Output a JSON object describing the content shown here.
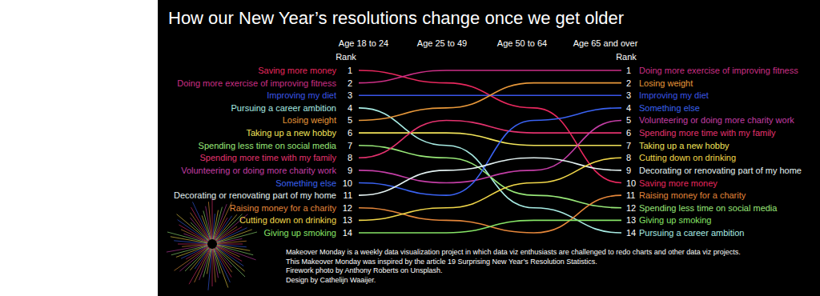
{
  "chart_data": {
    "type": "bump",
    "title": "How our New Year’s resolutions change once we get older",
    "categories": [
      "Age 18 to 24",
      "Age 25 to 49",
      "Age 50 to 64",
      "Age 65 and over"
    ],
    "y_label": "Rank",
    "ylim": [
      1,
      14
    ],
    "yticks": [
      1,
      2,
      3,
      4,
      5,
      6,
      7,
      8,
      9,
      10,
      11,
      12,
      13,
      14
    ],
    "series": [
      {
        "name": "Saving more money",
        "color": "#e8285e",
        "values": [
          1,
          2,
          4,
          10
        ]
      },
      {
        "name": "Doing more exercise of improving fitness",
        "color": "#cc2f86",
        "values": [
          2,
          1,
          1,
          1
        ]
      },
      {
        "name": "Improving my diet",
        "color": "#3a55e8",
        "values": [
          3,
          3,
          3,
          3
        ]
      },
      {
        "name": "Pursuing a career ambition",
        "color": "#a8ece4",
        "values": [
          4,
          7,
          12,
          14
        ]
      },
      {
        "name": "Losing weight",
        "color": "#e8983a",
        "values": [
          5,
          4,
          2,
          2
        ]
      },
      {
        "name": "Taking up a new hobby",
        "color": "#f2e45a",
        "values": [
          6,
          6,
          7,
          7
        ]
      },
      {
        "name": "Spending less time on social media",
        "color": "#98e878",
        "values": [
          7,
          8,
          11,
          12
        ]
      },
      {
        "name": "Spending more time with my family",
        "color": "#e4326e",
        "values": [
          8,
          5,
          6,
          6
        ]
      },
      {
        "name": "Volunteering or doing more charity work",
        "color": "#c43ea6",
        "values": [
          9,
          10,
          9,
          5
        ]
      },
      {
        "name": "Something else",
        "color": "#3a62f2",
        "values": [
          10,
          11,
          5,
          4
        ]
      },
      {
        "name": "Decorating or renovating part of my home",
        "color": "#e4f2f2",
        "values": [
          11,
          9,
          8,
          9
        ]
      },
      {
        "name": "Raising money for a charity",
        "color": "#e4863a",
        "values": [
          12,
          13,
          14,
          11
        ]
      },
      {
        "name": "Cutting down on drinking",
        "color": "#f2d84a",
        "values": [
          13,
          12,
          10,
          8
        ]
      },
      {
        "name": "Giving up smoking",
        "color": "#86e466",
        "values": [
          14,
          14,
          13,
          13
        ]
      }
    ],
    "notes": [
      "Makeover Monday is a weekly data visualization project in which data viz enthusiasts are challenged to redo charts and other data viz projects.",
      "This Makeover Monday was inspired by the article 19 Surprising New Year’s Resolution Statistics.",
      "Firework photo by Anthony Roberts on Unsplash.",
      "Design by Cathelijn Waaijer."
    ]
  }
}
